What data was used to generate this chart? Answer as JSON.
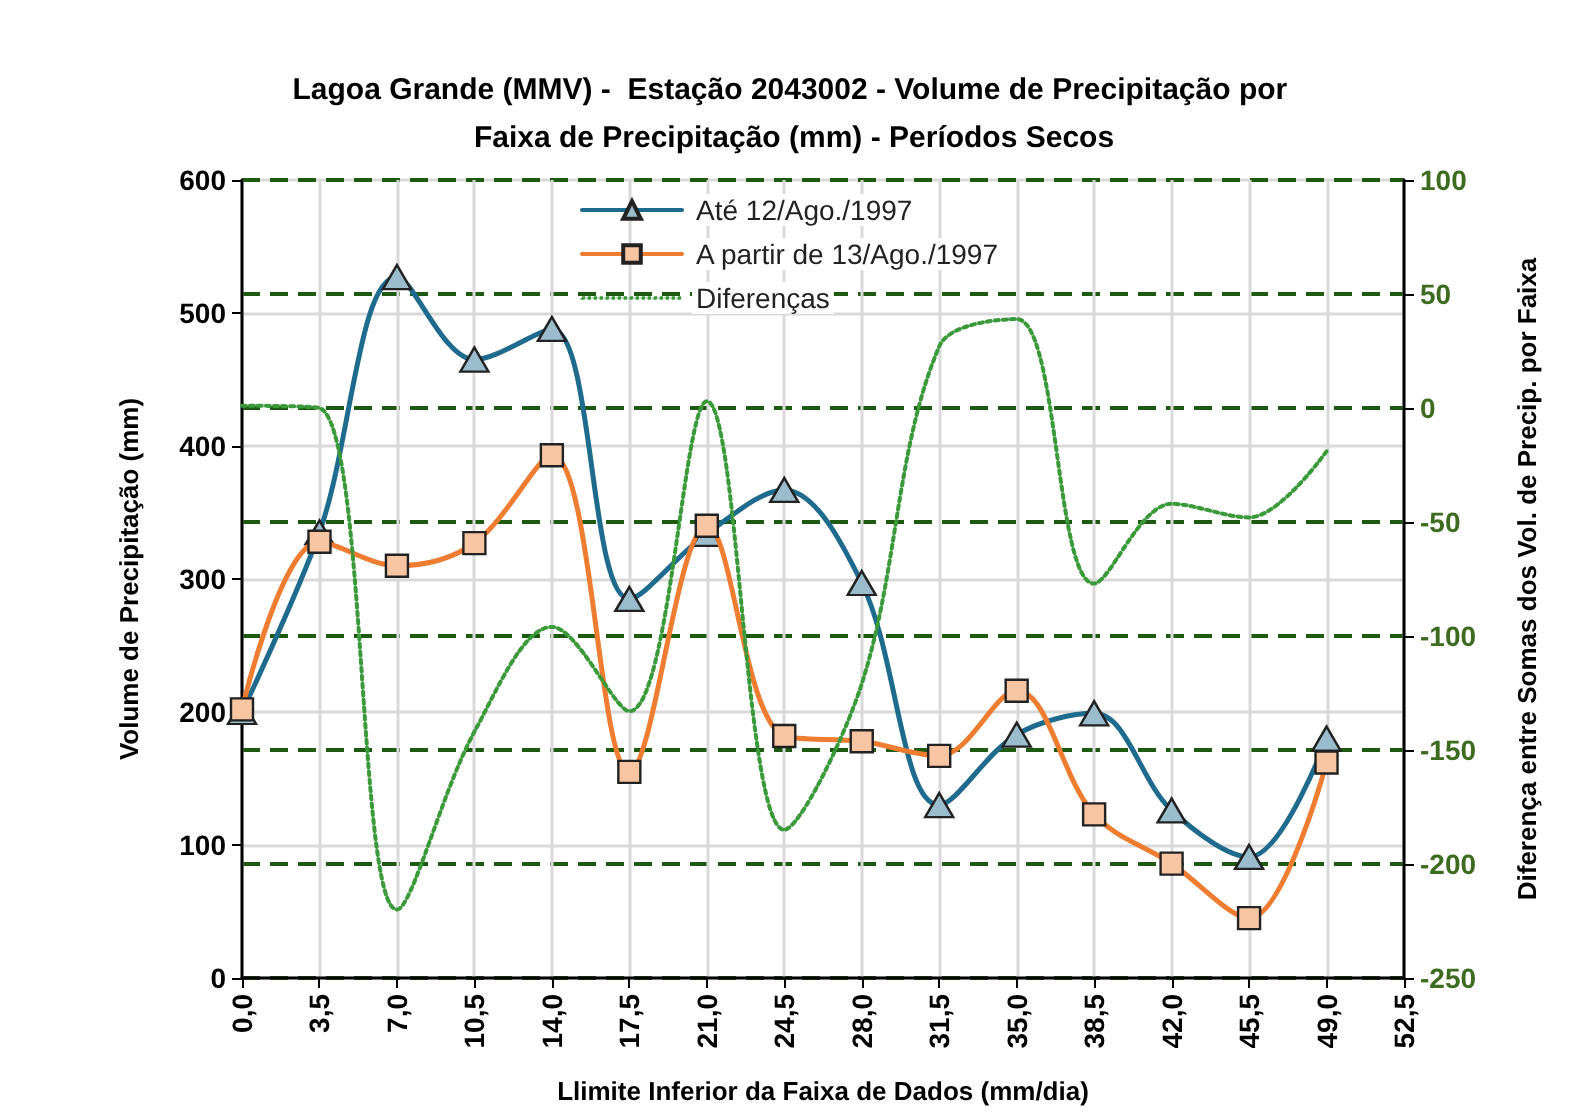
{
  "chart_data": {
    "type": "line",
    "title": "Lagoa Grande (MMV) -  Estação 2043002 - Volume de Precipitação por Faixa de Precipitação (mm) - Períodos Secos",
    "xlabel": "Llimite Inferior da Faixa de Dados (mm/dia)",
    "ylabel": "Volume de Precipitação (mm)",
    "y2label": "Diferença entre Somas dos Vol. de Precip. por Faixa",
    "x": [
      0,
      3.5,
      7,
      10.5,
      14,
      17.5,
      21,
      24.5,
      28,
      31.5,
      35,
      38.5,
      42,
      45.5,
      49
    ],
    "series": [
      {
        "name": "Até 12/Ago./1997",
        "color": "#1f6b8e",
        "marker": "triangle",
        "line_style": "solid",
        "values": [
          200,
          335,
          527,
          465,
          488,
          285,
          334,
          367,
          297,
          130,
          183,
          199,
          126,
          91,
          180
        ]
      },
      {
        "name": "A partir de 13/Ago./1997",
        "color": "#ee7d31",
        "marker": "square",
        "line_style": "solid",
        "values": [
          202,
          328,
          310,
          327,
          393,
          155,
          340,
          182,
          178,
          167,
          216,
          123,
          86,
          45,
          162
        ]
      },
      {
        "name": "Diferenças",
        "color": "#3a9a3a",
        "marker": "none",
        "line_style": "dotted",
        "axis": "y2",
        "values": [
          1,
          0,
          -220,
          -142,
          -96,
          -133,
          3,
          -185,
          -121,
          27,
          39,
          -77,
          -42,
          -48,
          -19
        ]
      }
    ],
    "xlim": [
      0,
      52.5
    ],
    "xticks": [
      {
        "value": 0,
        "label": "0,0"
      },
      {
        "value": 3.5,
        "label": "3,5"
      },
      {
        "value": 7,
        "label": "7,0"
      },
      {
        "value": 10.5,
        "label": "10,5"
      },
      {
        "value": 14,
        "label": "14,0"
      },
      {
        "value": 17.5,
        "label": "17,5"
      },
      {
        "value": 21,
        "label": "21,0"
      },
      {
        "value": 24.5,
        "label": "24,5"
      },
      {
        "value": 28,
        "label": "28,0"
      },
      {
        "value": 31.5,
        "label": "31,5"
      },
      {
        "value": 35,
        "label": "35,0"
      },
      {
        "value": 38.5,
        "label": "38,5"
      },
      {
        "value": 42,
        "label": "42,0"
      },
      {
        "value": 45.5,
        "label": "45,5"
      },
      {
        "value": 49,
        "label": "49,0"
      },
      {
        "value": 52.5,
        "label": "52,5"
      }
    ],
    "ylim": [
      0,
      600
    ],
    "yticks": [
      0,
      100,
      200,
      300,
      400,
      500,
      600
    ],
    "y2lim": [
      -250,
      100
    ],
    "y2ticks": [
      -250,
      -200,
      -150,
      -100,
      -50,
      0,
      50,
      100
    ],
    "grid": true,
    "legend": "top"
  }
}
